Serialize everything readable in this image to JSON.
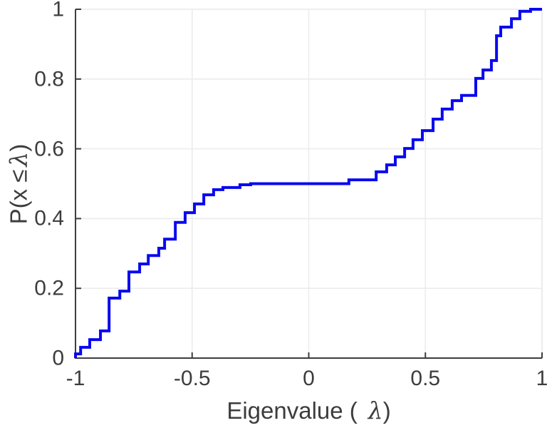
{
  "chart_data": {
    "type": "step",
    "subtype": "empirical-cdf",
    "title": "",
    "xlabel_prefix": "Eigenvalue (",
    "xlabel_symbol": "λ",
    "xlabel_suffix": ")",
    "ylabel_prefix": "P(x ",
    "ylabel_leq": "≤",
    "ylabel_symbol": "λ",
    "ylabel_suffix": ")",
    "xlim": [
      -1,
      1
    ],
    "ylim": [
      0,
      1
    ],
    "grid": true,
    "legend": null,
    "x_ticks": [
      {
        "value": -1,
        "label": "-1"
      },
      {
        "value": -0.5,
        "label": "-0.5"
      },
      {
        "value": 0,
        "label": "0"
      },
      {
        "value": 0.5,
        "label": "0.5"
      },
      {
        "value": 1,
        "label": "1"
      }
    ],
    "y_ticks": [
      {
        "value": 0,
        "label": "0"
      },
      {
        "value": 0.2,
        "label": "0.2"
      },
      {
        "value": 0.4,
        "label": "0.4"
      },
      {
        "value": 0.6,
        "label": "0.6"
      },
      {
        "value": 0.8,
        "label": "0.8"
      },
      {
        "value": 1,
        "label": "1"
      }
    ],
    "line_color": "#0909ef",
    "line_width": 4,
    "axis_color": "#3d3d3d",
    "grid_color": "#ececec",
    "frame_color": "#e8e8e8",
    "steps": [
      [
        -1.0,
        0.012
      ],
      [
        -0.978,
        0.031
      ],
      [
        -0.939,
        0.053
      ],
      [
        -0.893,
        0.078
      ],
      [
        -0.856,
        0.172
      ],
      [
        -0.81,
        0.192
      ],
      [
        -0.771,
        0.247
      ],
      [
        -0.725,
        0.27
      ],
      [
        -0.688,
        0.294
      ],
      [
        -0.643,
        0.315
      ],
      [
        -0.618,
        0.341
      ],
      [
        -0.572,
        0.389
      ],
      [
        -0.53,
        0.417
      ],
      [
        -0.49,
        0.442
      ],
      [
        -0.45,
        0.468
      ],
      [
        -0.408,
        0.483
      ],
      [
        -0.368,
        0.489
      ],
      [
        -0.295,
        0.497
      ],
      [
        -0.249,
        0.5
      ],
      [
        0.172,
        0.511
      ],
      [
        0.289,
        0.534
      ],
      [
        0.334,
        0.554
      ],
      [
        0.371,
        0.577
      ],
      [
        0.411,
        0.601
      ],
      [
        0.447,
        0.626
      ],
      [
        0.487,
        0.652
      ],
      [
        0.533,
        0.685
      ],
      [
        0.572,
        0.714
      ],
      [
        0.615,
        0.738
      ],
      [
        0.655,
        0.753
      ],
      [
        0.716,
        0.802
      ],
      [
        0.747,
        0.826
      ],
      [
        0.783,
        0.853
      ],
      [
        0.805,
        0.924
      ],
      [
        0.823,
        0.949
      ],
      [
        0.869,
        0.973
      ],
      [
        0.905,
        0.994
      ],
      [
        0.951,
        1.0
      ]
    ]
  }
}
